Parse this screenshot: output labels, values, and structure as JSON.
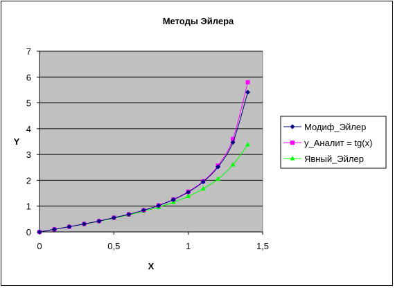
{
  "chart_data": {
    "type": "line",
    "title": "Методы Эйлера",
    "xlabel": "X",
    "ylabel": "Y",
    "xlim": [
      0,
      1.5
    ],
    "ylim": [
      0,
      7
    ],
    "x_ticks": [
      "0",
      "0,5",
      "1",
      "1,5"
    ],
    "x_tick_values": [
      0,
      0.5,
      1,
      1.5
    ],
    "y_ticks": [
      "0",
      "1",
      "2",
      "3",
      "4",
      "5",
      "6",
      "7"
    ],
    "y_tick_values": [
      0,
      1,
      2,
      3,
      4,
      5,
      6,
      7
    ],
    "grid": "horizontal",
    "legend_position": "right",
    "plot_background": "#c0c0c0",
    "x": [
      0,
      0.1,
      0.2,
      0.3,
      0.4,
      0.5,
      0.6,
      0.7,
      0.8,
      0.9,
      1.0,
      1.1,
      1.2,
      1.3,
      1.4
    ],
    "series": [
      {
        "name": "Модиф_Эйлер",
        "color": "#000080",
        "marker": "diamond",
        "values": [
          0,
          0.1,
          0.2,
          0.31,
          0.42,
          0.55,
          0.68,
          0.84,
          1.02,
          1.25,
          1.54,
          1.94,
          2.52,
          3.47,
          5.41
        ]
      },
      {
        "name": "y_Аналит = tg(x)",
        "color": "#ff00ff",
        "marker": "square",
        "values": [
          0,
          0.1,
          0.2,
          0.31,
          0.42,
          0.55,
          0.68,
          0.84,
          1.03,
          1.26,
          1.56,
          1.96,
          2.57,
          3.6,
          5.8
        ]
      },
      {
        "name": "Явный_Эйлер",
        "color": "#00ff00",
        "marker": "triangle",
        "values": [
          0,
          0.1,
          0.2,
          0.3,
          0.41,
          0.53,
          0.66,
          0.8,
          0.96,
          1.15,
          1.38,
          1.67,
          2.05,
          2.6,
          3.38
        ]
      }
    ]
  }
}
